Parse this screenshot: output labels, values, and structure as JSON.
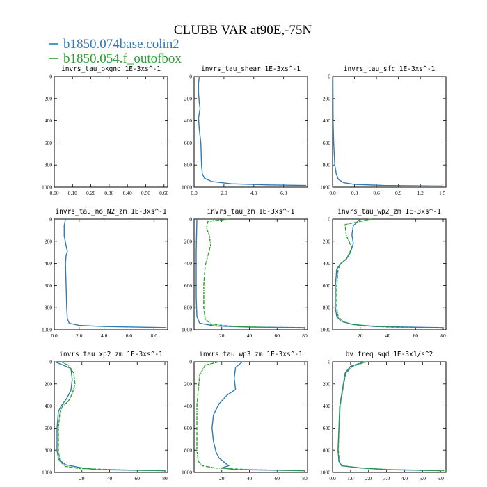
{
  "figure": {
    "title": "CLUBB VAR at90E,-75N",
    "legend": [
      {
        "label": "b1850.074base.colin2",
        "color": "#2e7bb6"
      },
      {
        "label": "b1850.054.f_outofbox",
        "color": "#2ca02c"
      }
    ]
  },
  "chart_data": [
    {
      "type": "line",
      "title": "invrs_tau_bkgnd",
      "units": "1E-3xs^-1",
      "xticks": [
        "0.00",
        "0.10",
        "0.20",
        "0.30",
        "0.40",
        "0.50",
        "0.60"
      ],
      "xlim": [
        0,
        0.62
      ],
      "yticks": [
        "0",
        "200",
        "400",
        "600",
        "800",
        "1000"
      ],
      "ylim": [
        0,
        1000
      ],
      "y_inverted": true,
      "series": []
    },
    {
      "type": "line",
      "title": "invrs_tau_shear",
      "units": "1E-3xs^-1",
      "xticks": [
        "0.0",
        "2.0",
        "4.0",
        "6.0"
      ],
      "xlim": [
        0,
        7.6
      ],
      "yticks": [
        "0",
        "200",
        "400",
        "600",
        "800",
        "1000"
      ],
      "ylim": [
        0,
        1000
      ],
      "y_inverted": true,
      "series": [
        {
          "name": "b1850.074base.colin2",
          "color": "#2e7bb6",
          "points": [
            [
              0.35,
              0
            ],
            [
              0.3,
              60
            ],
            [
              0.3,
              150
            ],
            [
              0.35,
              240
            ],
            [
              0.4,
              290
            ],
            [
              0.35,
              330
            ],
            [
              0.3,
              380
            ],
            [
              0.35,
              480
            ],
            [
              0.45,
              600
            ],
            [
              0.5,
              800
            ],
            [
              0.55,
              880
            ],
            [
              0.7,
              920
            ],
            [
              1.2,
              950
            ],
            [
              2.5,
              970
            ],
            [
              5.0,
              980
            ],
            [
              7.5,
              985
            ]
          ]
        }
      ]
    },
    {
      "type": "line",
      "title": "invrs_tau_sfc",
      "units": "1E-3xs^-1",
      "xticks": [
        "0.0",
        "0.3",
        "0.6",
        "0.9",
        "1.2",
        "1.5"
      ],
      "xlim": [
        0,
        1.55
      ],
      "yticks": [
        "0",
        "200",
        "400",
        "600",
        "800",
        "1000"
      ],
      "ylim": [
        0,
        1000
      ],
      "y_inverted": true,
      "series": [
        {
          "name": "b1850.074base.colin2",
          "color": "#2e7bb6",
          "points": [
            [
              0.005,
              0
            ],
            [
              0.008,
              400
            ],
            [
              0.015,
              600
            ],
            [
              0.03,
              800
            ],
            [
              0.05,
              880
            ],
            [
              0.08,
              930
            ],
            [
              0.15,
              960
            ],
            [
              0.3,
              975
            ],
            [
              0.7,
              985
            ],
            [
              1.5,
              990
            ]
          ]
        }
      ]
    },
    {
      "type": "line",
      "title": "invrs_tau_no_N2_zm",
      "units": "1E-3xs^-1",
      "xticks": [
        "0.0",
        "2.0",
        "4.0",
        "6.0",
        "8.0"
      ],
      "xlim": [
        0,
        9.1
      ],
      "yticks": [
        "0",
        "200",
        "400",
        "600",
        "800",
        "1000"
      ],
      "ylim": [
        0,
        1000
      ],
      "y_inverted": true,
      "series": [
        {
          "name": "b1850.074base.colin2",
          "color": "#2e7bb6",
          "points": [
            [
              0.9,
              0
            ],
            [
              0.8,
              60
            ],
            [
              0.8,
              150
            ],
            [
              0.95,
              240
            ],
            [
              1.05,
              290
            ],
            [
              0.95,
              330
            ],
            [
              0.9,
              400
            ],
            [
              0.95,
              600
            ],
            [
              1.0,
              800
            ],
            [
              1.05,
              900
            ],
            [
              1.2,
              940
            ],
            [
              2.0,
              960
            ],
            [
              4.0,
              970
            ],
            [
              9.0,
              980
            ]
          ]
        }
      ]
    },
    {
      "type": "line",
      "title": "invrs_tau_zm",
      "units": "1E-3xs^-1",
      "xticks": [
        "20",
        "40",
        "60",
        "80"
      ],
      "xlim": [
        0,
        82
      ],
      "yticks": [
        "0",
        "200",
        "400",
        "600",
        "800",
        "1000"
      ],
      "ylim": [
        0,
        1000
      ],
      "y_inverted": true,
      "series": [
        {
          "name": "b1850.074base.colin2",
          "color": "#2e7bb6",
          "points": [
            [
              2,
              0
            ],
            [
              1.5,
              300
            ],
            [
              1.5,
              700
            ],
            [
              2,
              880
            ],
            [
              4,
              940
            ],
            [
              15,
              965
            ],
            [
              40,
              975
            ],
            [
              80,
              980
            ]
          ]
        },
        {
          "name": "b1850.054.f_outofbox",
          "color": "#2ca02c",
          "points": [
            [
              25,
              0
            ],
            [
              10,
              20
            ],
            [
              9,
              80
            ],
            [
              11,
              150
            ],
            [
              12,
              230
            ],
            [
              10,
              330
            ],
            [
              8,
              420
            ],
            [
              7,
              600
            ],
            [
              7,
              800
            ],
            [
              8,
              900
            ],
            [
              12,
              950
            ],
            [
              30,
              970
            ],
            [
              60,
              980
            ],
            [
              80,
              985
            ]
          ]
        }
      ]
    },
    {
      "type": "line",
      "title": "invrs_tau_wp2_zm",
      "units": "1E-3xs^-1",
      "xticks": [
        "20",
        "40",
        "60",
        "80"
      ],
      "xlim": [
        0,
        82
      ],
      "yticks": [
        "0",
        "200",
        "400",
        "600",
        "800",
        "1000"
      ],
      "ylim": [
        0,
        1000
      ],
      "y_inverted": true,
      "series": [
        {
          "name": "b1850.074base.colin2",
          "color": "#2e7bb6",
          "points": [
            [
              20,
              0
            ],
            [
              15,
              60
            ],
            [
              14,
              140
            ],
            [
              15,
              220
            ],
            [
              13,
              300
            ],
            [
              10,
              360
            ],
            [
              6,
              400
            ],
            [
              3,
              450
            ],
            [
              2,
              600
            ],
            [
              2,
              800
            ],
            [
              3,
              880
            ],
            [
              6,
              920
            ],
            [
              14,
              950
            ],
            [
              30,
              970
            ],
            [
              80,
              980
            ]
          ]
        },
        {
          "name": "b1850.054.f_outofbox",
          "color": "#2ca02c",
          "points": [
            [
              28,
              0
            ],
            [
              9,
              50
            ],
            [
              10,
              150
            ],
            [
              14,
              260
            ],
            [
              10,
              360
            ],
            [
              6,
              400
            ],
            [
              4,
              450
            ],
            [
              3,
              600
            ],
            [
              3,
              800
            ],
            [
              4,
              880
            ],
            [
              8,
              930
            ],
            [
              16,
              955
            ],
            [
              40,
              975
            ],
            [
              80,
              985
            ]
          ]
        }
      ]
    },
    {
      "type": "line",
      "title": "invrs_tau_xp2_zm",
      "units": "1E-3xs^-1",
      "xticks": [
        "20",
        "40",
        "60",
        "80"
      ],
      "xlim": [
        0,
        82
      ],
      "yticks": [
        "0",
        "200",
        "400",
        "600",
        "800",
        "1000"
      ],
      "ylim": [
        0,
        1000
      ],
      "y_inverted": true,
      "series": [
        {
          "name": "b1850.074base.colin2",
          "color": "#2e7bb6",
          "points": [
            [
              0.5,
              0
            ],
            [
              12,
              60
            ],
            [
              13,
              160
            ],
            [
              12,
              260
            ],
            [
              9,
              330
            ],
            [
              5,
              400
            ],
            [
              3,
              450
            ],
            [
              2,
              600
            ],
            [
              2,
              800
            ],
            [
              3,
              880
            ],
            [
              8,
              930
            ],
            [
              20,
              960
            ],
            [
              30,
              975
            ],
            [
              80,
              985
            ]
          ]
        },
        {
          "name": "b1850.054.f_outofbox",
          "color": "#2ca02c",
          "points": [
            [
              5,
              0
            ],
            [
              10,
              30
            ],
            [
              14,
              100
            ],
            [
              15,
              200
            ],
            [
              13,
              290
            ],
            [
              10,
              360
            ],
            [
              6,
              400
            ],
            [
              4,
              460
            ],
            [
              3,
              600
            ],
            [
              3,
              800
            ],
            [
              4,
              900
            ],
            [
              8,
              945
            ],
            [
              18,
              965
            ],
            [
              50,
              978
            ],
            [
              80,
              985
            ]
          ]
        }
      ]
    },
    {
      "type": "line",
      "title": "invrs_tau_wp3_zm",
      "units": "1E-3xs^-1",
      "xticks": [
        "20",
        "40",
        "60",
        "80"
      ],
      "xlim": [
        0,
        82
      ],
      "yticks": [
        "0",
        "200",
        "400",
        "600",
        "800",
        "1000"
      ],
      "ylim": [
        0,
        1000
      ],
      "y_inverted": true,
      "series": [
        {
          "name": "b1850.074base.colin2",
          "color": "#2e7bb6",
          "points": [
            [
              35,
              0
            ],
            [
              30,
              50
            ],
            [
              29,
              150
            ],
            [
              30,
              250
            ],
            [
              24,
              300
            ],
            [
              18,
              380
            ],
            [
              14,
              480
            ],
            [
              13,
              600
            ],
            [
              14,
              720
            ],
            [
              16,
              820
            ],
            [
              18,
              870
            ],
            [
              22,
              910
            ],
            [
              25,
              940
            ],
            [
              20,
              960
            ],
            [
              30,
              975
            ],
            [
              80,
              985
            ]
          ]
        },
        {
          "name": "b1850.054.f_outofbox",
          "color": "#2ca02c",
          "points": [
            [
              18,
              0
            ],
            [
              8,
              30
            ],
            [
              4,
              120
            ],
            [
              3,
              260
            ],
            [
              2,
              400
            ],
            [
              2,
              800
            ],
            [
              3,
              900
            ],
            [
              6,
              940
            ],
            [
              15,
              960
            ],
            [
              40,
              975
            ],
            [
              80,
              985
            ]
          ]
        }
      ]
    },
    {
      "type": "line",
      "title": "bv_freq_sqd",
      "units": "1E-3x1/s^2",
      "xticks": [
        "0.0",
        "1.0",
        "2.0",
        "3.0",
        "4.0",
        "5.0",
        "6.0"
      ],
      "xlim": [
        0,
        6.3
      ],
      "yticks": [
        "0",
        "200",
        "400",
        "600",
        "800",
        "1000"
      ],
      "ylim": [
        0,
        1000
      ],
      "y_inverted": true,
      "series": [
        {
          "name": "b1850.074base.colin2",
          "color": "#2e7bb6",
          "points": [
            [
              1.8,
              0
            ],
            [
              1.0,
              40
            ],
            [
              0.7,
              100
            ],
            [
              0.6,
              200
            ],
            [
              0.5,
              300
            ],
            [
              0.4,
              400
            ],
            [
              0.35,
              600
            ],
            [
              0.3,
              800
            ],
            [
              0.35,
              900
            ],
            [
              0.5,
              940
            ],
            [
              1.5,
              960
            ],
            [
              3.0,
              975
            ],
            [
              6.0,
              985
            ]
          ]
        },
        {
          "name": "b1850.054.f_outofbox",
          "color": "#2ca02c",
          "points": [
            [
              1.9,
              0
            ],
            [
              1.1,
              40
            ],
            [
              0.75,
              100
            ],
            [
              0.62,
              200
            ],
            [
              0.52,
              300
            ],
            [
              0.42,
              400
            ],
            [
              0.36,
              600
            ],
            [
              0.32,
              800
            ],
            [
              0.37,
              900
            ],
            [
              0.55,
              940
            ],
            [
              1.6,
              960
            ],
            [
              3.2,
              975
            ],
            [
              6.2,
              985
            ]
          ]
        }
      ]
    }
  ]
}
